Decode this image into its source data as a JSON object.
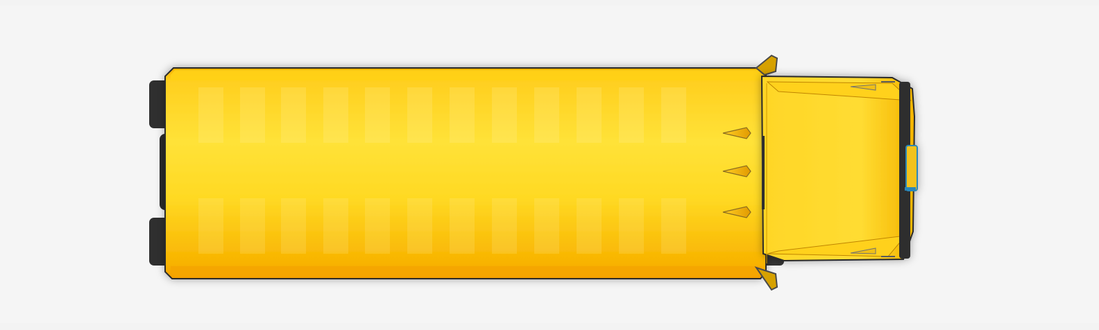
{
  "scene": {
    "subject": "yellow-bus-top-view",
    "colors": {
      "background": "#f5f5f5",
      "body": "#fdd430",
      "body_dark": "#f5a600",
      "outline": "#2b2b2b",
      "tire": "#2f2f2f",
      "accent_blue": "#2b87b8"
    }
  }
}
